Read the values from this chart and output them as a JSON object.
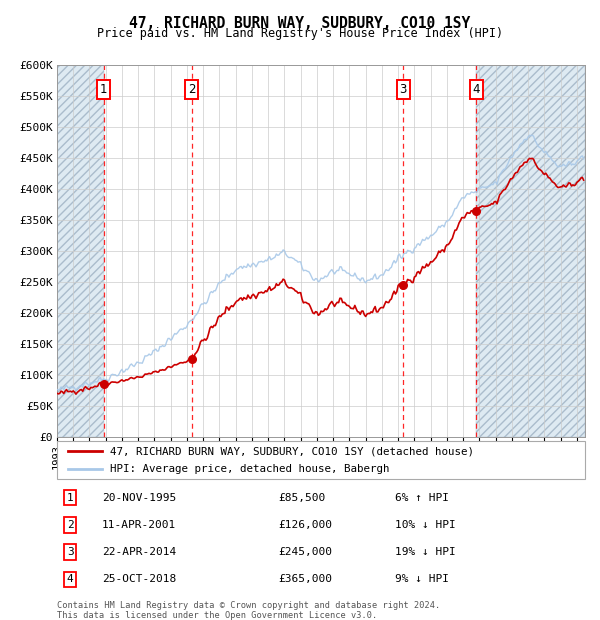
{
  "title1": "47, RICHARD BURN WAY, SUDBURY, CO10 1SY",
  "title2": "Price paid vs. HM Land Registry's House Price Index (HPI)",
  "ylim": [
    0,
    600000
  ],
  "yticks": [
    0,
    50000,
    100000,
    150000,
    200000,
    250000,
    300000,
    350000,
    400000,
    450000,
    500000,
    550000,
    600000
  ],
  "ytick_labels": [
    "£0",
    "£50K",
    "£100K",
    "£150K",
    "£200K",
    "£250K",
    "£300K",
    "£350K",
    "£400K",
    "£450K",
    "£500K",
    "£550K",
    "£600K"
  ],
  "xlim_start": 1993.0,
  "xlim_end": 2025.5,
  "hpi_color": "#a8c8e8",
  "price_color": "#cc0000",
  "legend_label_price": "47, RICHARD BURN WAY, SUDBURY, CO10 1SY (detached house)",
  "legend_label_hpi": "HPI: Average price, detached house, Babergh",
  "sales": [
    {
      "num": 1,
      "date": "20-NOV-1995",
      "price": 85500,
      "pct": "6%",
      "dir": "↑",
      "year": 1995.88
    },
    {
      "num": 2,
      "date": "11-APR-2001",
      "price": 126000,
      "pct": "10%",
      "dir": "↓",
      "year": 2001.28
    },
    {
      "num": 3,
      "date": "22-APR-2014",
      "price": 245000,
      "pct": "19%",
      "dir": "↓",
      "year": 2014.31
    },
    {
      "num": 4,
      "date": "25-OCT-2018",
      "price": 365000,
      "pct": "9%",
      "dir": "↓",
      "year": 2018.81
    }
  ],
  "footer1": "Contains HM Land Registry data © Crown copyright and database right 2024.",
  "footer2": "This data is licensed under the Open Government Licence v3.0.",
  "hatch_color": "#c8dcea",
  "grid_color": "#cccccc"
}
